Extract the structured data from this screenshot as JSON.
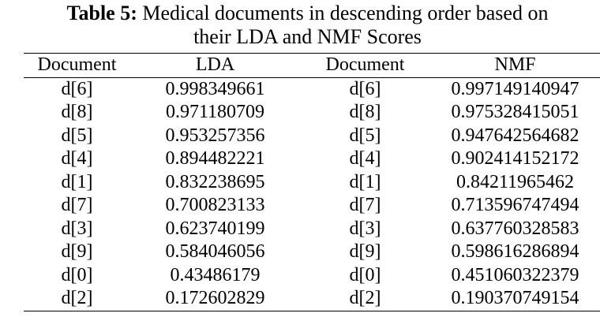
{
  "caption": {
    "label": "Table 5:",
    "lines": [
      "Medical documents in descending order based on",
      "their LDA and NMF Scores"
    ]
  },
  "table": {
    "header": [
      "Document",
      "LDA",
      "Document",
      "NMF"
    ],
    "rows": [
      [
        "d[6]",
        "0.998349661",
        "d[6]",
        "0.997149140947"
      ],
      [
        "d[8]",
        "0.971180709",
        "d[8]",
        "0.975328415051"
      ],
      [
        "d[5]",
        "0.953257356",
        "d[5]",
        "0.947642564682"
      ],
      [
        "d[4]",
        "0.894482221",
        "d[4]",
        "0.902414152172"
      ],
      [
        "d[1]",
        "0.832238695",
        "d[1]",
        "0.84211965462"
      ],
      [
        "d[7]",
        "0.700823133",
        "d[7]",
        "0.713596747494"
      ],
      [
        "d[3]",
        "0.623740199",
        "d[3]",
        "0.637760328583"
      ],
      [
        "d[9]",
        "0.584046056",
        "d[9]",
        "0.598616286894"
      ],
      [
        "d[0]",
        "0.43486179",
        "d[0]",
        "0.451060322379"
      ],
      [
        "d[2]",
        "0.172602829",
        "d[2]",
        "0.190370749154"
      ]
    ]
  }
}
